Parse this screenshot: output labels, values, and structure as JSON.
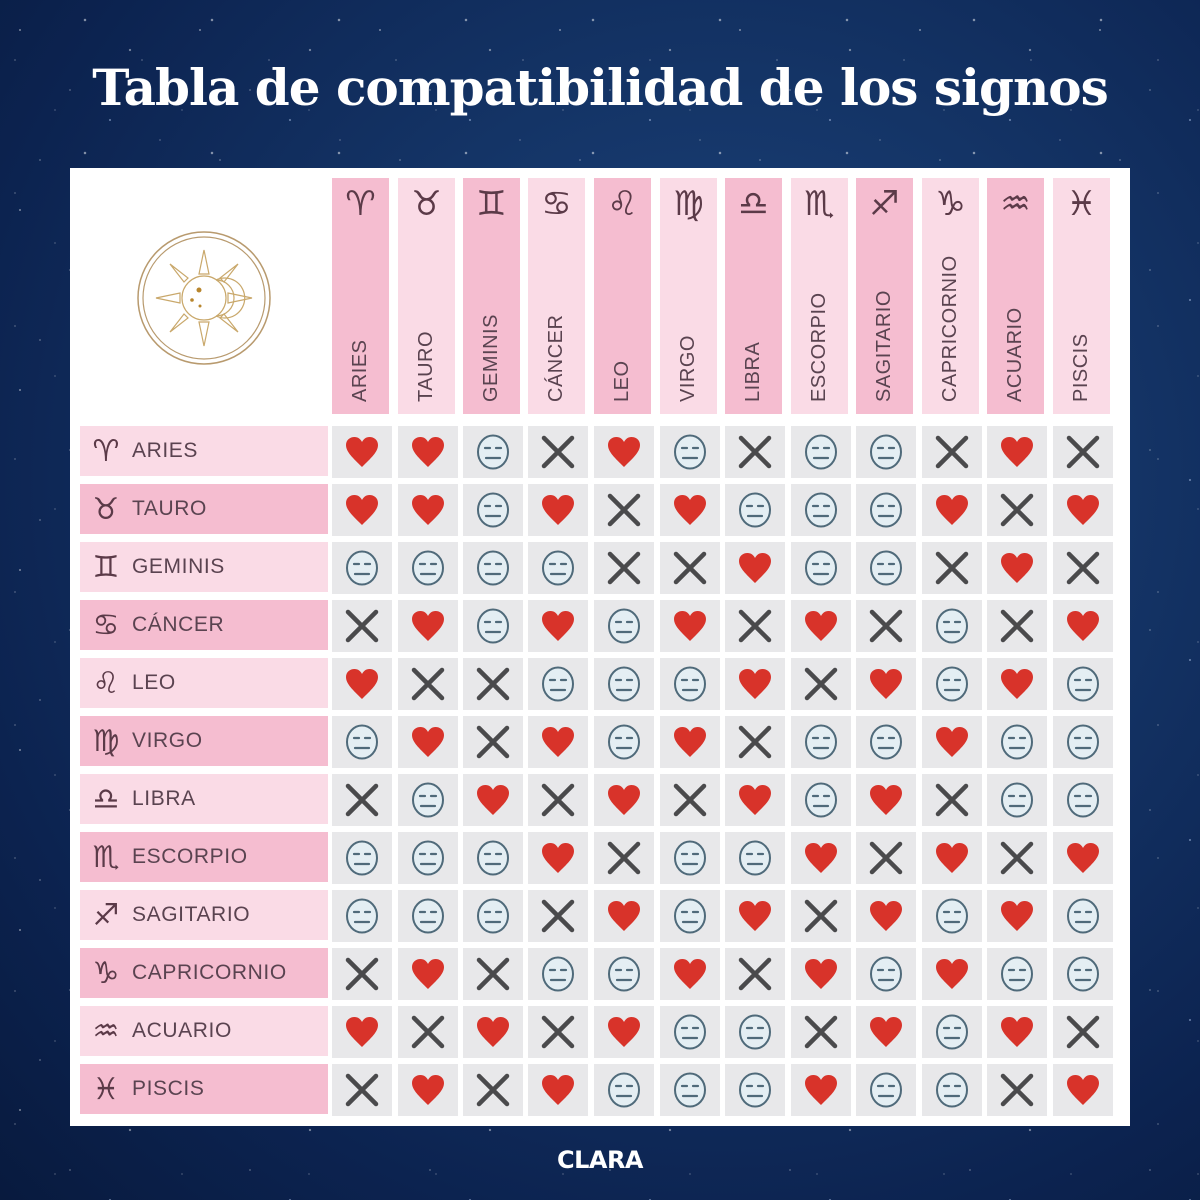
{
  "title": "Tabla de compatibilidad de los signos",
  "footer": "CLARA",
  "legend_icons": {
    "heart": "heart-icon (compatible)",
    "neutral": "neutral-face-icon (neutral)",
    "x": "x-icon (incompatible)"
  },
  "colors": {
    "background": "#143466",
    "pink_dark": "#f5bdd0",
    "pink_light": "#fadbe6",
    "cell_bg": "#e8e8ea",
    "heart": "#d8332a",
    "x": "#4a4a4c",
    "face_stroke": "#4f6a7a",
    "face_fill": "#e4eef3"
  },
  "signs": [
    {
      "name": "ARIES",
      "glyph": "♈"
    },
    {
      "name": "TAURO",
      "glyph": "♉"
    },
    {
      "name": "GEMINIS",
      "glyph": "♊"
    },
    {
      "name": "CÁNCER",
      "glyph": "♋"
    },
    {
      "name": "LEO",
      "glyph": "♌"
    },
    {
      "name": "VIRGO",
      "glyph": "♍"
    },
    {
      "name": "LIBRA",
      "glyph": "♎"
    },
    {
      "name": "ESCORPIO",
      "glyph": "♏"
    },
    {
      "name": "SAGITARIO",
      "glyph": "♐"
    },
    {
      "name": "CAPRICORNIO",
      "glyph": "♑"
    },
    {
      "name": "ACUARIO",
      "glyph": "♒"
    },
    {
      "name": "PISCIS",
      "glyph": "♓"
    }
  ],
  "matrix": [
    [
      "H",
      "H",
      "N",
      "X",
      "H",
      "N",
      "X",
      "N",
      "N",
      "X",
      "H",
      "X"
    ],
    [
      "H",
      "H",
      "N",
      "H",
      "X",
      "H",
      "N",
      "N",
      "N",
      "H",
      "X",
      "H"
    ],
    [
      "N",
      "N",
      "N",
      "N",
      "X",
      "X",
      "H",
      "N",
      "N",
      "X",
      "H",
      "X"
    ],
    [
      "X",
      "H",
      "N",
      "H",
      "N",
      "H",
      "X",
      "H",
      "X",
      "N",
      "X",
      "H"
    ],
    [
      "H",
      "X",
      "X",
      "N",
      "N",
      "N",
      "H",
      "X",
      "H",
      "N",
      "H",
      "N"
    ],
    [
      "N",
      "H",
      "X",
      "H",
      "N",
      "H",
      "X",
      "N",
      "N",
      "H",
      "N",
      "N"
    ],
    [
      "X",
      "N",
      "H",
      "X",
      "H",
      "X",
      "H",
      "N",
      "H",
      "X",
      "N",
      "N"
    ],
    [
      "N",
      "N",
      "N",
      "H",
      "X",
      "N",
      "N",
      "H",
      "X",
      "H",
      "X",
      "H"
    ],
    [
      "N",
      "N",
      "N",
      "X",
      "H",
      "N",
      "H",
      "X",
      "H",
      "N",
      "H",
      "N"
    ],
    [
      "X",
      "H",
      "X",
      "N",
      "N",
      "H",
      "X",
      "H",
      "N",
      "H",
      "N",
      "N"
    ],
    [
      "H",
      "X",
      "H",
      "X",
      "H",
      "N",
      "N",
      "X",
      "H",
      "N",
      "H",
      "X"
    ],
    [
      "X",
      "H",
      "X",
      "H",
      "N",
      "N",
      "N",
      "H",
      "N",
      "N",
      "X",
      "H"
    ]
  ]
}
